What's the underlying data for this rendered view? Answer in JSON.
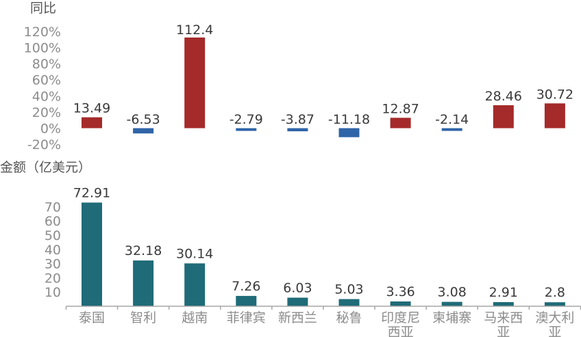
{
  "chart_data": [
    {
      "type": "bar",
      "ylabel": "同比",
      "y_tick_labels": [
        "120%",
        "100%",
        "80%",
        "60%",
        "40%",
        "20%",
        "0%",
        "-20%"
      ],
      "ylim": [
        -20,
        120
      ],
      "categories": [
        "泰国",
        "智利",
        "越南",
        "菲律宾",
        "新西兰",
        "秘鲁",
        "印度尼西亚",
        "柬埔寨",
        "马来西亚",
        "澳大利亚"
      ],
      "values": [
        13.49,
        -6.53,
        112.4,
        -2.79,
        -3.87,
        -11.18,
        12.87,
        -2.14,
        28.46,
        30.72
      ],
      "value_labels": [
        "13.49",
        "-6.53",
        "112.4",
        "-2.79",
        "-3.87",
        "-11.18",
        "12.87",
        "-2.14",
        "28.46",
        "30.72"
      ],
      "colors": {
        "positive": "#a52a2a",
        "negative": "#2f64a8"
      },
      "grid": false
    },
    {
      "type": "bar",
      "ylabel": "金额（亿美元）",
      "y_tick_labels": [
        "70",
        "60",
        "50",
        "40",
        "30",
        "20",
        "10"
      ],
      "ylim": [
        0,
        75
      ],
      "categories": [
        "泰国",
        "智利",
        "越南",
        "菲律宾",
        "新西兰",
        "秘鲁",
        "印度尼西亚",
        "柬埔寨",
        "马来西亚",
        "澳大利亚"
      ],
      "category_labels": [
        [
          "泰国"
        ],
        [
          "智利"
        ],
        [
          "越南"
        ],
        [
          "菲律宾"
        ],
        [
          "新西兰"
        ],
        [
          "秘鲁"
        ],
        [
          "印度尼",
          "西亚"
        ],
        [
          "柬埔寨"
        ],
        [
          "马来西",
          "亚"
        ],
        [
          "澳大利",
          "亚"
        ]
      ],
      "values": [
        72.91,
        32.18,
        30.14,
        7.26,
        6.03,
        5.03,
        3.36,
        3.08,
        2.91,
        2.8
      ],
      "value_labels": [
        "72.91",
        "32.18",
        "30.14",
        "7.26",
        "6.03",
        "5.03",
        "3.36",
        "3.08",
        "2.91",
        "2.8"
      ],
      "colors": {
        "bar": "#1f6b78",
        "axis": "#a6a6a6"
      },
      "grid": false
    }
  ]
}
